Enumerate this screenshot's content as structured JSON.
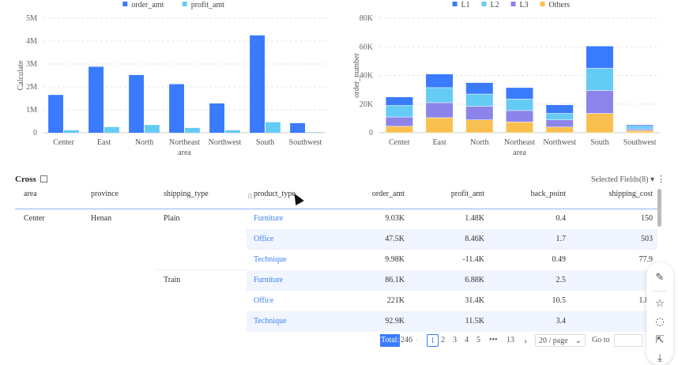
{
  "chart_data": [
    {
      "type": "bar",
      "xlabel": "area",
      "ylabel": "Calculate",
      "ylim": [
        0,
        5000000
      ],
      "yticks": [
        "0",
        "1M",
        "2M",
        "3M",
        "4M",
        "5M"
      ],
      "categories": [
        "Center",
        "East",
        "North",
        "Northeast",
        "Northwest",
        "South",
        "Southwest"
      ],
      "series": [
        {
          "name": "order_amt",
          "color": "#3a7bfd",
          "values": [
            1650000,
            2880000,
            2520000,
            2120000,
            1280000,
            4250000,
            420000
          ]
        },
        {
          "name": "profit_amt",
          "color": "#64cbf5",
          "values": [
            110000,
            250000,
            340000,
            210000,
            110000,
            460000,
            20000
          ]
        }
      ],
      "legend": "top",
      "grid": true
    },
    {
      "type": "bar",
      "stacked": true,
      "xlabel": "area",
      "ylabel": "order_number",
      "ylim": [
        0,
        80000
      ],
      "yticks": [
        "0",
        "20K",
        "40K",
        "60K",
        "80K"
      ],
      "categories": [
        "Center",
        "East",
        "North",
        "Northeast",
        "Northwest",
        "South",
        "Southwest"
      ],
      "series": [
        {
          "name": "L1",
          "color": "#3a7bfd",
          "values": [
            6000,
            9500,
            8000,
            8000,
            6000,
            15500,
            1000
          ]
        },
        {
          "name": "L2",
          "color": "#64cbf5",
          "values": [
            8000,
            10500,
            8500,
            8000,
            4500,
            15500,
            2000
          ]
        },
        {
          "name": "L3",
          "color": "#8c84ea",
          "values": [
            6500,
            10500,
            9500,
            8000,
            5000,
            16000,
            1000
          ]
        },
        {
          "name": "Others",
          "color": "#fac04f",
          "values": [
            4500,
            10500,
            9000,
            7500,
            4000,
            13500,
            1500
          ]
        }
      ],
      "legend": "top",
      "grid": true
    }
  ],
  "table": {
    "title": "Cross",
    "selected_fields": "Selected Fields(8)",
    "headers": [
      "area",
      "province",
      "shipping_type",
      "product_type",
      "order_amt",
      "profit_amt",
      "back_point",
      "shipping_cost"
    ],
    "area": "Center",
    "province": "Henan",
    "shipping": [
      "Plain",
      "Train"
    ],
    "rows": [
      [
        "Furniture",
        "9.03K",
        "1.48K",
        "0.4",
        "150"
      ],
      [
        "Office",
        "47.5K",
        "8.46K",
        "1.7",
        "503"
      ],
      [
        "Technique",
        "9.98K",
        "-11.4K",
        "0.49",
        "77.9"
      ],
      [
        "Furniture",
        "86.1K",
        "6.88K",
        "2.5",
        "6"
      ],
      [
        "Office",
        "221K",
        "31.4K",
        "10.5",
        "1.86"
      ],
      [
        "Technique",
        "92.9K",
        "11.5K",
        "3.4",
        "5"
      ]
    ]
  },
  "pagination": {
    "total_label": "Total:",
    "total": "246",
    "pages": [
      "1",
      "2",
      "3",
      "4",
      "5",
      "•••",
      "13"
    ],
    "current": "1",
    "page_size": "20 / page",
    "goto": "Go to",
    "goto_value": ""
  }
}
